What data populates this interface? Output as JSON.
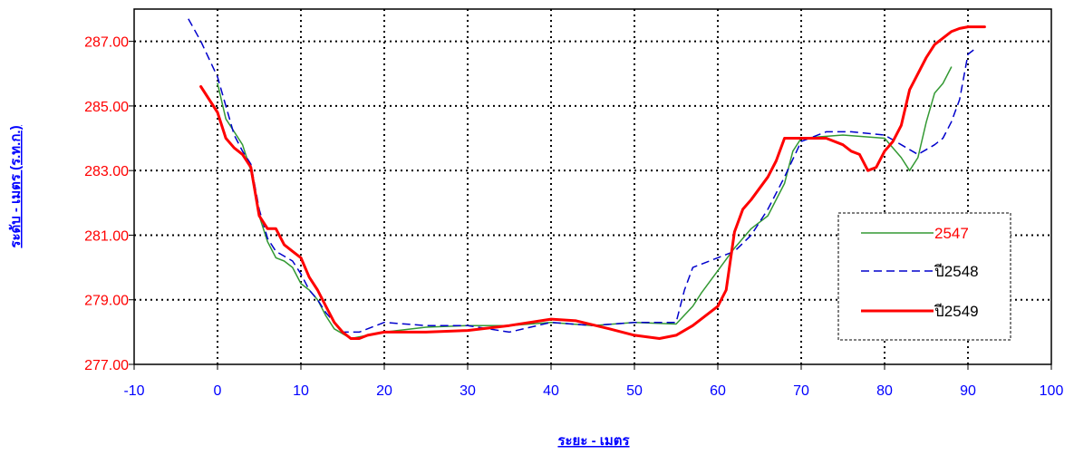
{
  "chart_data": {
    "type": "line",
    "title": "",
    "xlabel": "ระยะ - เมตร",
    "ylabel": "ระดับ - เมตร (ร.ท.ก.)",
    "xlim": [
      -10,
      100
    ],
    "ylim": [
      277,
      288
    ],
    "x_ticks": [
      -10,
      0,
      10,
      20,
      30,
      40,
      50,
      60,
      70,
      80,
      90,
      100
    ],
    "x_tick_labels": [
      "-10",
      "0",
      "10",
      "20",
      "30",
      "40",
      "50",
      "60",
      "70",
      "80",
      "90",
      "100"
    ],
    "y_ticks": [
      277,
      279,
      281,
      283,
      285,
      287
    ],
    "y_tick_labels": [
      "277.00",
      "279.00",
      "281.00",
      "283.00",
      "285.00",
      "287.00"
    ],
    "grid": true,
    "legend_position": "right",
    "colors": {
      "x_axis_text": "#0000ff",
      "y_axis_text": "#ff0000",
      "x_title": "#0000ff",
      "y_title": "#0000ff"
    },
    "series": [
      {
        "name": "2547",
        "color": "#339933",
        "style": "solid",
        "width": 1.5,
        "label_color": "#ff0000",
        "points": [
          [
            0,
            285.7
          ],
          [
            1,
            284.6
          ],
          [
            2,
            284.2
          ],
          [
            3,
            283.8
          ],
          [
            4,
            283.0
          ],
          [
            5,
            281.6
          ],
          [
            6,
            280.8
          ],
          [
            7,
            280.3
          ],
          [
            8,
            280.2
          ],
          [
            9,
            280.0
          ],
          [
            10,
            279.5
          ],
          [
            11,
            279.3
          ],
          [
            12,
            279.0
          ],
          [
            13,
            278.5
          ],
          [
            14,
            278.1
          ],
          [
            16,
            277.8
          ],
          [
            18,
            277.9
          ],
          [
            20,
            278.0
          ],
          [
            25,
            278.15
          ],
          [
            30,
            278.2
          ],
          [
            35,
            278.2
          ],
          [
            40,
            278.3
          ],
          [
            45,
            278.2
          ],
          [
            50,
            278.3
          ],
          [
            55,
            278.25
          ],
          [
            57,
            278.8
          ],
          [
            58,
            279.2
          ],
          [
            60,
            279.9
          ],
          [
            62,
            280.6
          ],
          [
            64,
            281.2
          ],
          [
            66,
            281.6
          ],
          [
            68,
            282.6
          ],
          [
            69,
            283.6
          ],
          [
            70,
            284.0
          ],
          [
            75,
            284.1
          ],
          [
            80,
            284.0
          ],
          [
            82,
            283.4
          ],
          [
            83,
            283.0
          ],
          [
            84,
            283.4
          ],
          [
            85,
            284.5
          ],
          [
            86,
            285.4
          ],
          [
            87,
            285.7
          ],
          [
            88,
            286.2
          ]
        ]
      },
      {
        "name": "ปี2548",
        "color": "#0000cc",
        "style": "dashed",
        "width": 1.5,
        "label_color": "#000000",
        "points": [
          [
            -3.5,
            287.7
          ],
          [
            -2,
            287.0
          ],
          [
            0,
            285.9
          ],
          [
            1,
            285.0
          ],
          [
            2,
            284.1
          ],
          [
            3,
            283.6
          ],
          [
            4,
            283.2
          ],
          [
            5,
            281.8
          ],
          [
            6,
            280.9
          ],
          [
            7,
            280.5
          ],
          [
            9,
            280.2
          ],
          [
            10,
            279.8
          ],
          [
            11,
            279.3
          ],
          [
            12,
            279.0
          ],
          [
            13,
            278.6
          ],
          [
            15,
            278.0
          ],
          [
            17,
            278.0
          ],
          [
            20,
            278.3
          ],
          [
            25,
            278.2
          ],
          [
            30,
            278.2
          ],
          [
            35,
            278.0
          ],
          [
            40,
            278.3
          ],
          [
            45,
            278.2
          ],
          [
            50,
            278.3
          ],
          [
            55,
            278.3
          ],
          [
            56,
            279.3
          ],
          [
            57,
            280.0
          ],
          [
            60,
            280.3
          ],
          [
            62,
            280.5
          ],
          [
            64,
            281.0
          ],
          [
            66,
            281.8
          ],
          [
            68,
            282.8
          ],
          [
            70,
            283.9
          ],
          [
            73,
            284.2
          ],
          [
            76,
            284.2
          ],
          [
            80,
            284.1
          ],
          [
            82,
            283.8
          ],
          [
            84,
            283.5
          ],
          [
            86,
            283.8
          ],
          [
            87,
            284.0
          ],
          [
            88,
            284.5
          ],
          [
            89,
            285.2
          ],
          [
            90,
            286.6
          ],
          [
            91,
            286.8
          ]
        ]
      },
      {
        "name": "ปี2549",
        "color": "#ff0000",
        "style": "solid",
        "width": 3,
        "label_color": "#000000",
        "points": [
          [
            -2,
            285.6
          ],
          [
            0,
            284.8
          ],
          [
            1,
            284.0
          ],
          [
            2,
            283.7
          ],
          [
            3,
            283.5
          ],
          [
            4,
            283.1
          ],
          [
            5,
            281.6
          ],
          [
            6,
            281.2
          ],
          [
            7,
            281.2
          ],
          [
            8,
            280.7
          ],
          [
            9,
            280.5
          ],
          [
            10,
            280.3
          ],
          [
            11,
            279.7
          ],
          [
            12,
            279.3
          ],
          [
            13,
            278.8
          ],
          [
            14,
            278.3
          ],
          [
            15,
            278.0
          ],
          [
            16,
            277.8
          ],
          [
            17,
            277.8
          ],
          [
            18,
            277.9
          ],
          [
            20,
            278.0
          ],
          [
            25,
            278.0
          ],
          [
            30,
            278.05
          ],
          [
            35,
            278.2
          ],
          [
            40,
            278.4
          ],
          [
            43,
            278.35
          ],
          [
            47,
            278.1
          ],
          [
            50,
            277.9
          ],
          [
            53,
            277.8
          ],
          [
            55,
            277.9
          ],
          [
            57,
            278.2
          ],
          [
            60,
            278.8
          ],
          [
            61,
            279.3
          ],
          [
            62,
            281.1
          ],
          [
            63,
            281.8
          ],
          [
            64,
            282.1
          ],
          [
            66,
            282.8
          ],
          [
            67,
            283.3
          ],
          [
            68,
            284.0
          ],
          [
            70,
            284.0
          ],
          [
            73,
            284.0
          ],
          [
            75,
            283.8
          ],
          [
            76,
            283.6
          ],
          [
            77,
            283.5
          ],
          [
            78,
            283.0
          ],
          [
            79,
            283.1
          ],
          [
            80,
            283.6
          ],
          [
            81,
            283.9
          ],
          [
            82,
            284.4
          ],
          [
            83,
            285.5
          ],
          [
            84,
            286.0
          ],
          [
            85,
            286.5
          ],
          [
            86,
            286.9
          ],
          [
            87,
            287.1
          ],
          [
            88,
            287.3
          ],
          [
            89,
            287.4
          ],
          [
            90,
            287.45
          ],
          [
            92,
            287.45
          ]
        ]
      }
    ]
  }
}
